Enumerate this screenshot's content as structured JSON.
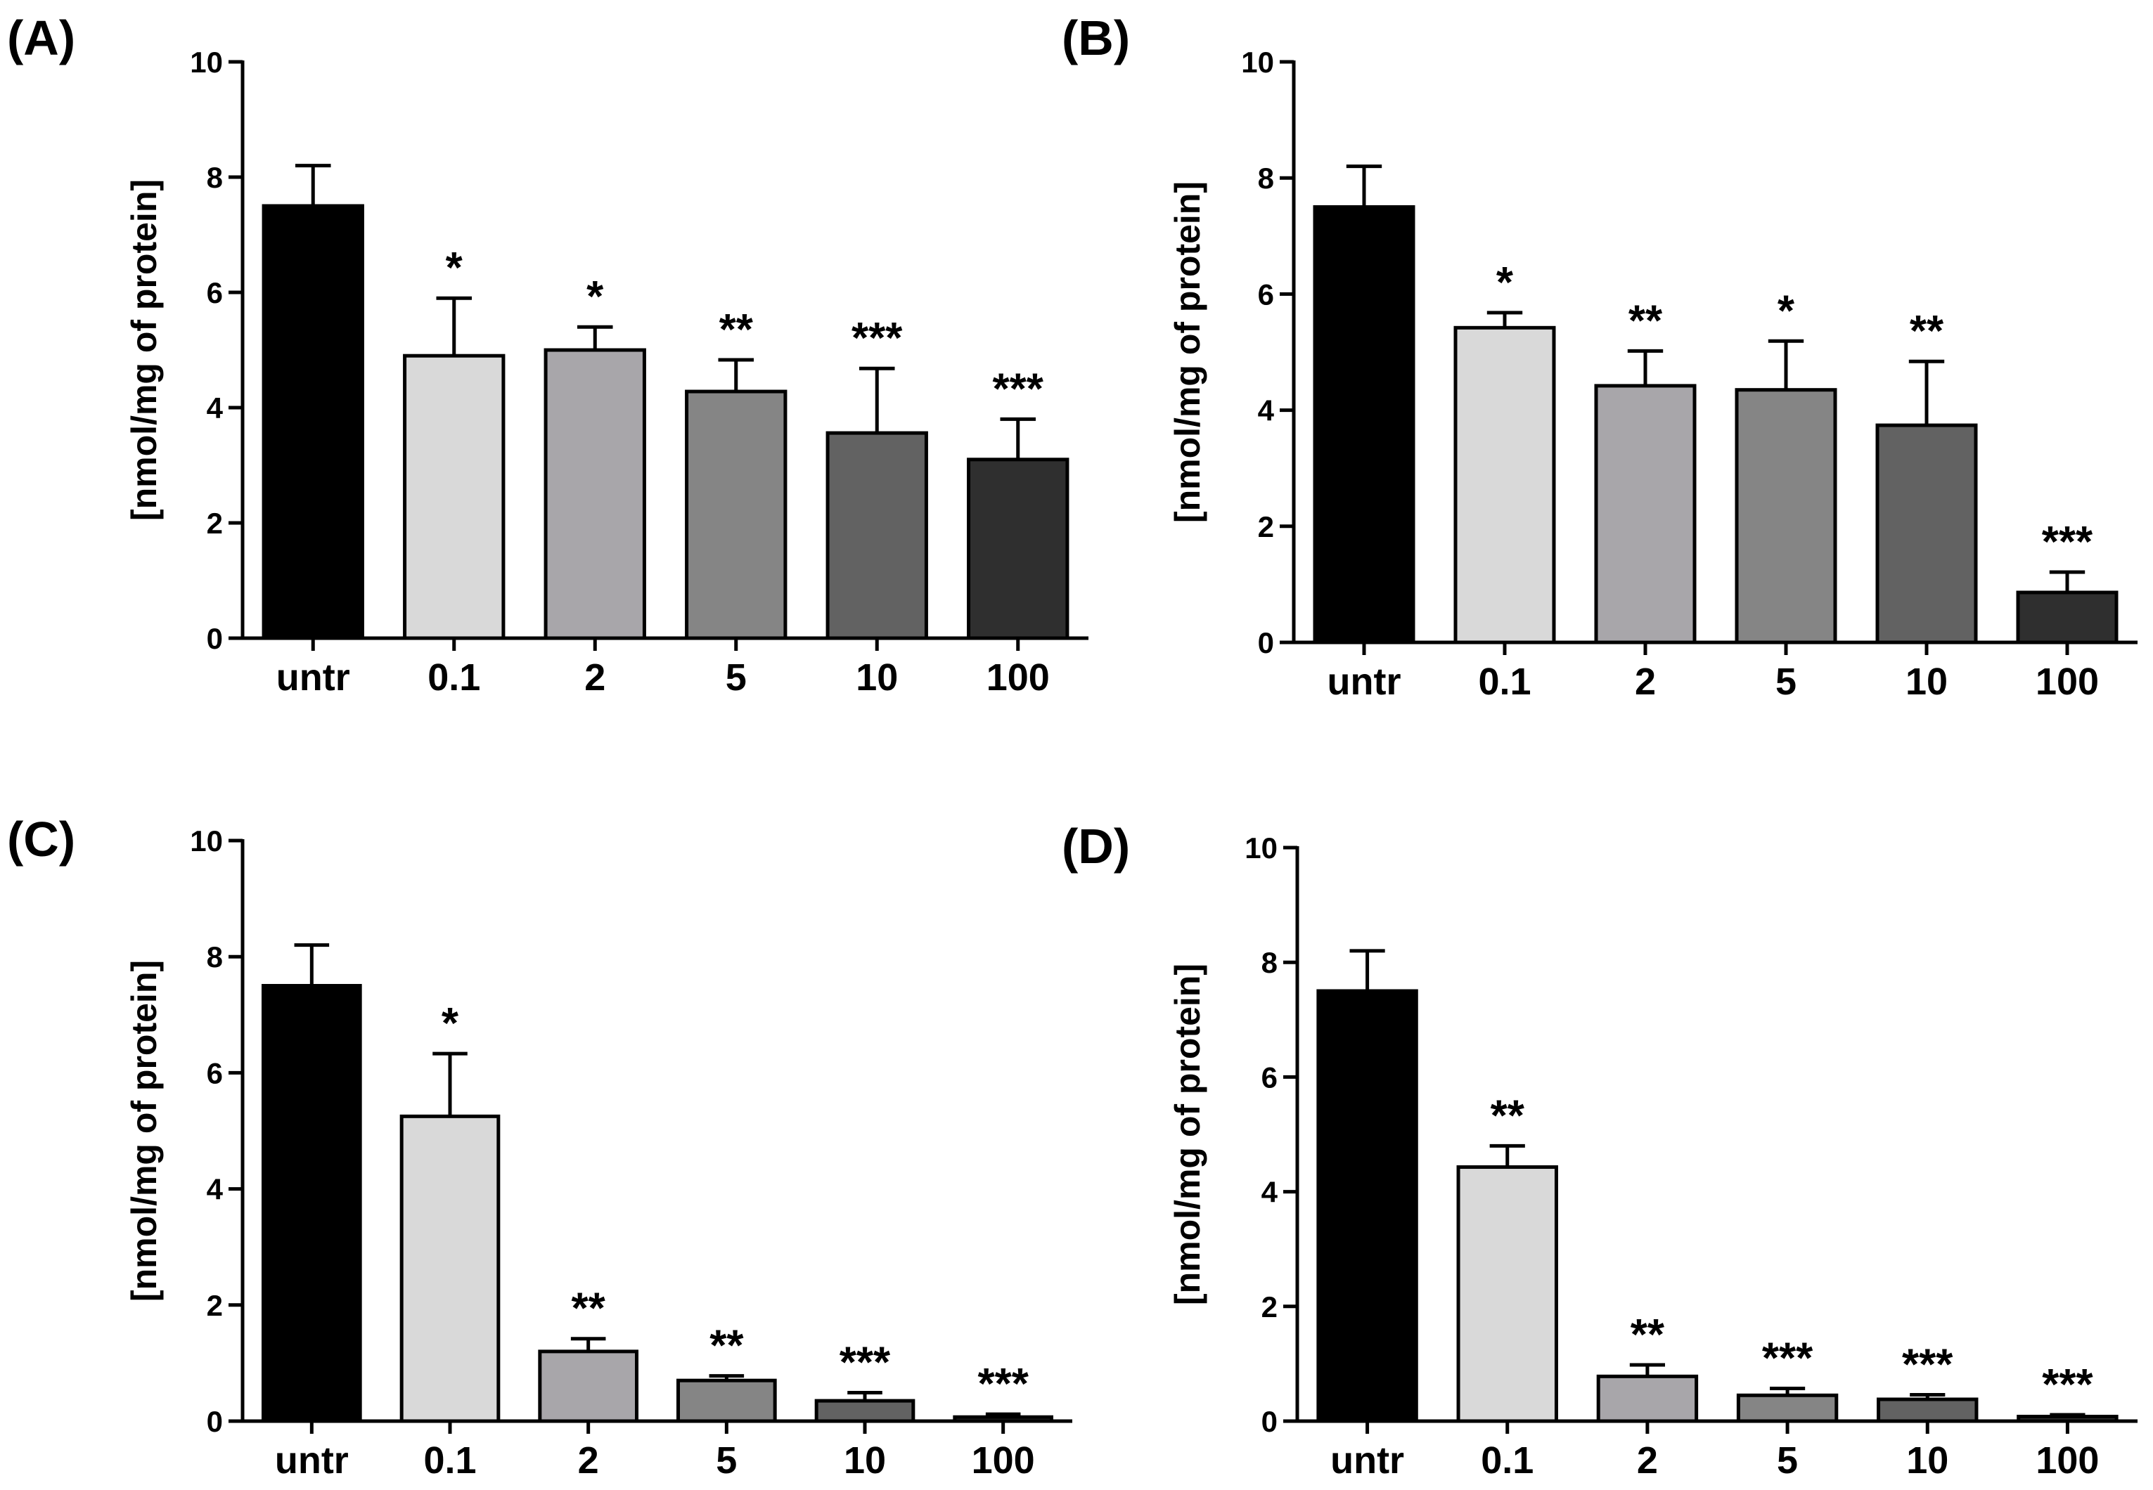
{
  "chart_data": [
    {
      "panel": "(A)",
      "type": "bar",
      "ylabel": "[nmol/mg of protein]",
      "ylim": [
        0,
        10
      ],
      "yticks": [
        "0",
        "2",
        "4",
        "6",
        "8",
        "10"
      ],
      "categories": [
        "untr",
        "0.1",
        "2",
        "5",
        "10",
        "100"
      ],
      "values": [
        7.5,
        4.9,
        5.0,
        4.28,
        3.56,
        3.1
      ],
      "errors": [
        0.7,
        1.0,
        0.4,
        0.55,
        1.12,
        0.7
      ],
      "significance": [
        "",
        "*",
        "*",
        "**",
        "***",
        "***"
      ],
      "colors": [
        "#000000",
        "#d9d9d9",
        "#a8a6aa",
        "#858585",
        "#626262",
        "#2f2f2f"
      ]
    },
    {
      "panel": "(B)",
      "type": "bar",
      "ylabel": "[nmol/mg of protein]",
      "ylim": [
        0,
        10
      ],
      "yticks": [
        "0",
        "2",
        "4",
        "6",
        "8",
        "10"
      ],
      "categories": [
        "untr",
        "0.1",
        "2",
        "5",
        "10",
        "100"
      ],
      "values": [
        7.5,
        5.42,
        4.42,
        4.35,
        3.74,
        0.86
      ],
      "errors": [
        0.7,
        0.26,
        0.6,
        0.84,
        1.1,
        0.35
      ],
      "significance": [
        "",
        "*",
        "**",
        "*",
        "**",
        "***"
      ],
      "colors": [
        "#000000",
        "#d9d9d9",
        "#a8a6aa",
        "#858585",
        "#626262",
        "#2f2f2f"
      ]
    },
    {
      "panel": "(C)",
      "type": "bar",
      "ylabel": "[nmol/mg of protein]",
      "ylim": [
        0,
        10
      ],
      "yticks": [
        "0",
        "2",
        "4",
        "6",
        "8",
        "10"
      ],
      "categories": [
        "untr",
        "0.1",
        "2",
        "5",
        "10",
        "100"
      ],
      "values": [
        7.5,
        5.25,
        1.2,
        0.7,
        0.35,
        0.07
      ],
      "errors": [
        0.7,
        1.08,
        0.22,
        0.08,
        0.14,
        0.05
      ],
      "significance": [
        "",
        "*",
        "**",
        "**",
        "***",
        "***"
      ],
      "colors": [
        "#000000",
        "#d9d9d9",
        "#a8a6aa",
        "#858585",
        "#626262",
        "#2f2f2f"
      ]
    },
    {
      "panel": "(D)",
      "type": "bar",
      "ylabel": "[nmol/mg of protein]",
      "ylim": [
        0,
        10
      ],
      "yticks": [
        "0",
        "2",
        "4",
        "6",
        "8",
        "10"
      ],
      "categories": [
        "untr",
        "0.1",
        "2",
        "5",
        "10",
        "100"
      ],
      "values": [
        7.5,
        4.43,
        0.78,
        0.45,
        0.38,
        0.08
      ],
      "errors": [
        0.7,
        0.37,
        0.2,
        0.12,
        0.08,
        0.03
      ],
      "significance": [
        "",
        "**",
        "**",
        "***",
        "***",
        "***"
      ],
      "colors": [
        "#000000",
        "#d9d9d9",
        "#a8a6aa",
        "#858585",
        "#626262",
        "#2f2f2f"
      ]
    }
  ]
}
